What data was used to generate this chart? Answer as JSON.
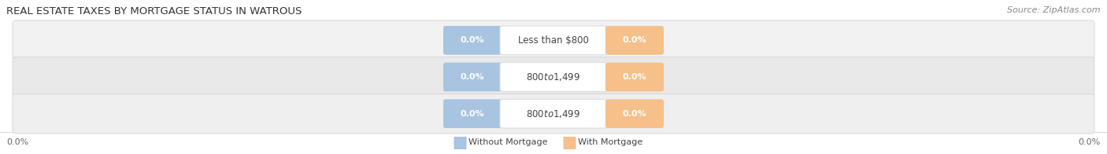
{
  "title": "REAL ESTATE TAXES BY MORTGAGE STATUS IN WATROUS",
  "source": "Source: ZipAtlas.com",
  "categories": [
    "Less than $800",
    "$800 to $1,499",
    "$800 to $1,499"
  ],
  "without_mortgage": [
    0.0,
    0.0,
    0.0
  ],
  "with_mortgage": [
    0.0,
    0.0,
    0.0
  ],
  "without_mortgage_color": "#a8c4e0",
  "with_mortgage_color": "#f5c08a",
  "row_bg_color_odd": "#efefef",
  "row_bg_color_even": "#e8e8e8",
  "label_color": "#444444",
  "title_color": "#333333",
  "source_color": "#888888",
  "legend_without": "Without Mortgage",
  "legend_with": "With Mortgage",
  "figsize": [
    14.06,
    1.96
  ],
  "dpi": 100,
  "bg_color": "#ffffff"
}
